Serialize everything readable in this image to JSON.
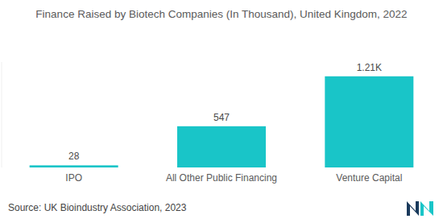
{
  "chart_data": {
    "type": "bar",
    "title": "Finance Raised by Biotech Companies (In Thousand), United Kingdom, 2022",
    "categories": [
      "IPO",
      "All Other Public Financing",
      "Venture Capital"
    ],
    "values": [
      28,
      547,
      1210
    ],
    "value_labels": [
      "28",
      "547",
      "1.21K"
    ],
    "color": "#19c5c8",
    "ylim": [
      0,
      1400
    ],
    "grid": false,
    "data_labels": true,
    "tick_labels": "x",
    "source": "Source:  UK Bioindustry Association, 2023"
  }
}
